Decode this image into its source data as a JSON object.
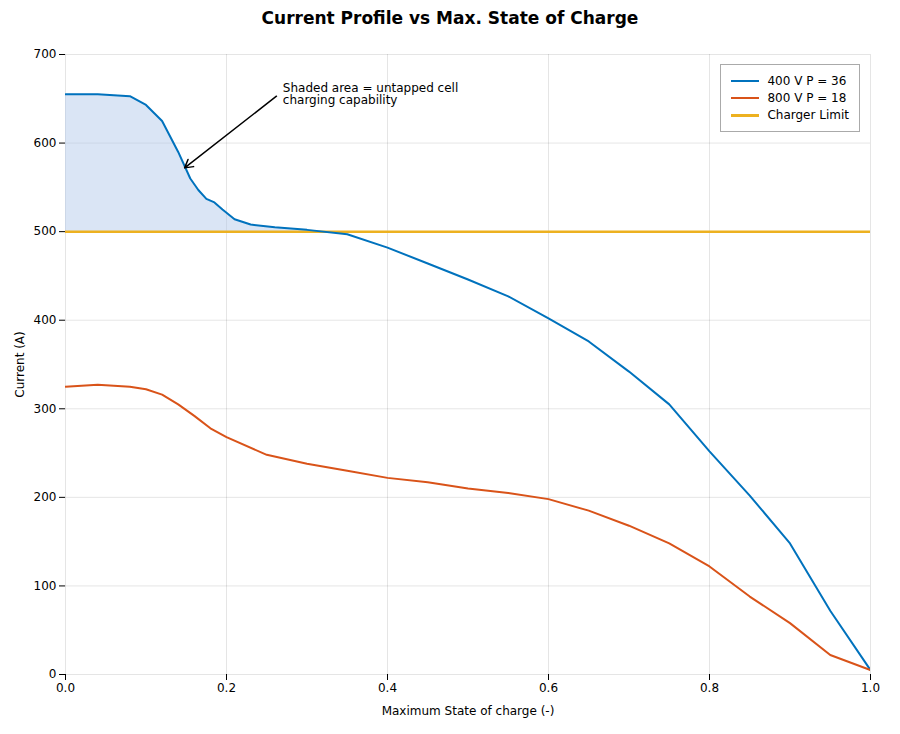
{
  "chart_data": {
    "type": "line",
    "title": "Current Profile vs Max. State of Charge",
    "xlabel": "Maximum State of charge (-)",
    "ylabel": "Current (A)",
    "xlim": [
      0,
      1.0
    ],
    "ylim": [
      0,
      700
    ],
    "xticks": [
      {
        "value": 0,
        "label": "0.0"
      },
      0.2,
      0.4,
      0.6,
      0.8,
      {
        "value": 1.0,
        "label": "1.0"
      }
    ],
    "yticks": [
      0,
      100,
      200,
      300,
      400,
      500,
      600,
      700
    ],
    "grid": true,
    "legend": "upper right",
    "series": [
      {
        "name": "400 V P = 36",
        "color": "#0072BD",
        "type": "line",
        "x": [
          0.0,
          0.04,
          0.08,
          0.1,
          0.12,
          0.14,
          0.155,
          0.165,
          0.175,
          0.185,
          0.195,
          0.21,
          0.23,
          0.26,
          0.3,
          0.35,
          0.4,
          0.45,
          0.5,
          0.55,
          0.6,
          0.65,
          0.7,
          0.75,
          0.8,
          0.85,
          0.9,
          0.95,
          1.0
        ],
        "values": [
          655,
          655,
          653,
          643,
          625,
          590,
          560,
          547,
          537,
          533,
          525,
          514,
          508,
          505,
          502,
          497,
          482,
          464,
          446,
          427,
          402,
          376,
          342,
          305,
          252,
          202,
          148,
          72,
          5
        ]
      },
      {
        "name": "800 V P = 18",
        "color": "#D95319",
        "type": "line",
        "x": [
          0.0,
          0.04,
          0.08,
          0.1,
          0.12,
          0.14,
          0.16,
          0.18,
          0.2,
          0.25,
          0.3,
          0.35,
          0.4,
          0.45,
          0.5,
          0.55,
          0.6,
          0.65,
          0.7,
          0.75,
          0.8,
          0.85,
          0.9,
          0.95,
          1.0
        ],
        "values": [
          325,
          327,
          325,
          322,
          316,
          305,
          292,
          278,
          268,
          248,
          238,
          230,
          222,
          217,
          210,
          205,
          198,
          185,
          168,
          148,
          122,
          88,
          58,
          22,
          5
        ]
      },
      {
        "name": "Charger Limit",
        "color": "#EDB120",
        "type": "hline",
        "value": 500
      }
    ],
    "shade": {
      "color": "#AEC6E8",
      "under": "400 V P = 36",
      "above": "Charger Limit"
    },
    "annotations": [
      {
        "text": "Shaded area = untapped cell\ncharging capability",
        "xy": [
          0.148,
          572
        ],
        "xytext": [
          0.265,
          655
        ]
      }
    ]
  }
}
